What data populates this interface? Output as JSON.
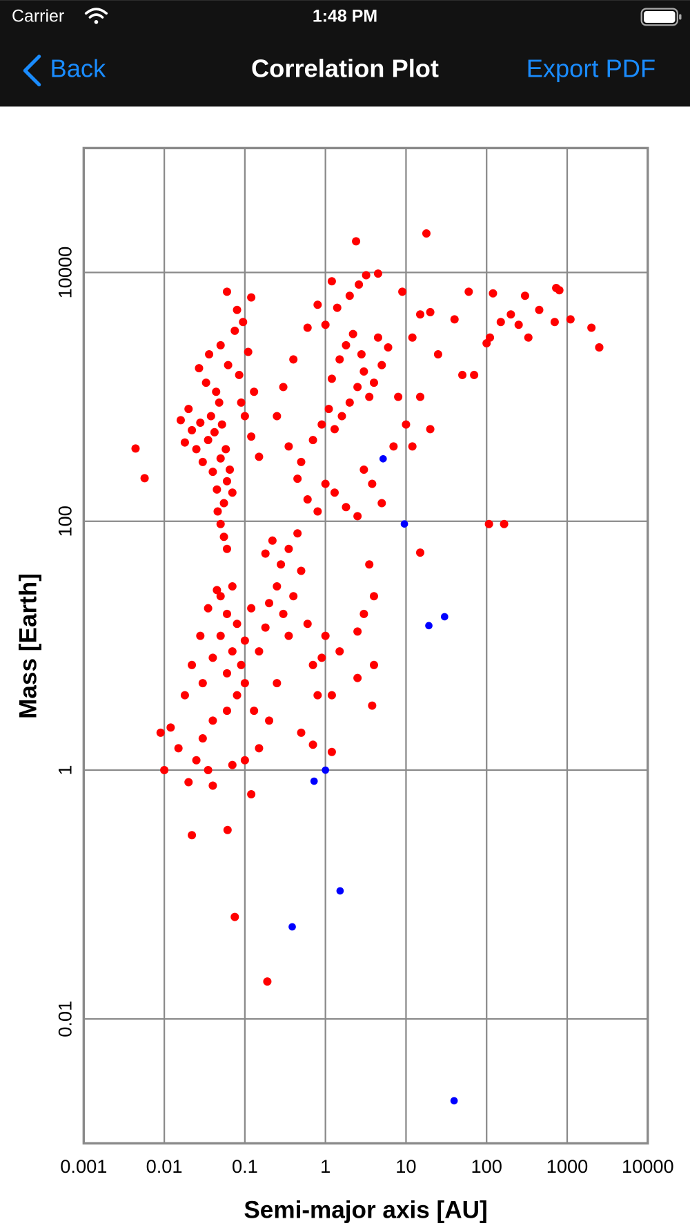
{
  "status_bar": {
    "carrier": "Carrier",
    "time": "1:48 PM"
  },
  "nav": {
    "back": "Back",
    "title": "Correlation Plot",
    "action": "Export PDF"
  },
  "chart_data": {
    "type": "scatter",
    "x_label": "Semi-major axis [AU]",
    "y_label": "Mass [Earth]",
    "xscale": "log",
    "yscale": "log",
    "grid": true,
    "xlim": [
      0.001,
      10000
    ],
    "ylim": [
      0.001,
      100000
    ],
    "xticks": [
      0.001,
      0.01,
      0.1,
      1,
      10,
      100,
      1000,
      10000
    ],
    "yticks": [
      0.01,
      1,
      100,
      10000
    ],
    "series": [
      {
        "color": "#ff0000",
        "x": [
          0.03,
          0.035,
          0.04,
          0.045,
          0.05,
          0.055,
          0.06,
          0.042,
          0.038,
          0.048,
          0.052,
          0.058,
          0.065,
          0.07,
          0.046,
          0.05,
          0.055,
          0.06,
          0.044,
          0.033,
          0.028,
          0.025,
          0.022,
          0.02,
          0.018,
          0.016,
          0.027,
          0.036,
          0.05,
          0.062,
          0.075,
          0.085,
          0.09,
          0.1,
          0.12,
          0.15,
          0.13,
          0.11,
          0.095,
          0.08,
          0.06,
          0.12,
          0.5,
          0.7,
          0.9,
          1.1,
          1.3,
          1.6,
          2,
          2.5,
          3,
          1.2,
          1.5,
          1.8,
          2.2,
          2.8,
          3.5,
          4,
          5,
          4.5,
          6,
          1,
          1.4,
          2,
          2.6,
          3.2,
          4.5,
          1.2,
          0.8,
          0.6,
          0.4,
          0.3,
          0.25,
          0.35,
          0.45,
          0.6,
          0.8,
          1,
          1.3,
          1.8,
          2.5,
          3,
          3.8,
          5,
          7,
          8,
          10,
          12,
          15,
          20,
          25,
          20,
          12,
          9,
          15,
          40,
          50,
          60,
          70,
          110,
          120,
          150,
          200,
          250,
          300,
          330,
          450,
          700,
          800,
          1100,
          2000,
          2500,
          100,
          0.03,
          0.04,
          0.05,
          0.06,
          0.07,
          0.08,
          0.09,
          0.1,
          0.12,
          0.06,
          0.05,
          0.07,
          0.08,
          0.06,
          0.04,
          0.03,
          0.025,
          0.02,
          0.015,
          0.012,
          0.01,
          0.009,
          0.018,
          0.022,
          0.028,
          0.035,
          0.045,
          0.1,
          0.13,
          0.15,
          0.18,
          0.2,
          0.25,
          0.3,
          0.35,
          0.4,
          0.5,
          0.6,
          0.7,
          0.8,
          0.9,
          0.25,
          0.2,
          0.15,
          0.1,
          0.07,
          0.04,
          0.035,
          0.28,
          0.35,
          0.45,
          0.18,
          0.22,
          1,
          1.2,
          1.5,
          2.5,
          3,
          4,
          3.5,
          4,
          0.7,
          0.5,
          1.2,
          0.0044,
          0.0057,
          2.4,
          17.9,
          0.022,
          0.061,
          0.075,
          0.19,
          0.12,
          165,
          15,
          3.8,
          2.5,
          2500,
          731,
          107
        ],
        "values": [
          300,
          450,
          250,
          180,
          320,
          140,
          210,
          520,
          700,
          900,
          600,
          380,
          260,
          170,
          120,
          95,
          75,
          60,
          1100,
          1300,
          620,
          380,
          540,
          800,
          430,
          650,
          1700,
          2200,
          2600,
          1800,
          3400,
          1500,
          900,
          700,
          480,
          330,
          1100,
          2300,
          4000,
          5000,
          7000,
          6300,
          300,
          450,
          600,
          800,
          550,
          700,
          900,
          1200,
          1600,
          1400,
          2000,
          2600,
          3200,
          2200,
          1000,
          1300,
          1800,
          3000,
          2500,
          3800,
          5200,
          6500,
          8000,
          9500,
          9800,
          8500,
          5500,
          3600,
          2000,
          1200,
          700,
          400,
          220,
          150,
          120,
          200,
          170,
          130,
          110,
          260,
          200,
          140,
          400,
          1000,
          600,
          400,
          1000,
          550,
          2200,
          4800,
          3000,
          7000,
          4600,
          4200,
          1500,
          7000,
          1500,
          3000,
          6800,
          4000,
          4600,
          3800,
          6500,
          3000,
          5000,
          4000,
          7200,
          4200,
          3600,
          2500,
          2700,
          5,
          8,
          12,
          6,
          9,
          15,
          7,
          11,
          20,
          18,
          25,
          30,
          4,
          3,
          2.5,
          1.8,
          1.2,
          0.8,
          1.5,
          2.2,
          1,
          2,
          4,
          7,
          12,
          20,
          28,
          5,
          3,
          9,
          14,
          22,
          30,
          18,
          12,
          25,
          40,
          15,
          7,
          4,
          8,
          5,
          2.5,
          1.5,
          1.2,
          1.1,
          0.75,
          1,
          45,
          60,
          80,
          55,
          70,
          12,
          4,
          9,
          13,
          18,
          25,
          45,
          7,
          1.6,
          2,
          1.4,
          385,
          222,
          17800,
          20600,
          0.3,
          0.33,
          0.066,
          0.02,
          0.64,
          95,
          56,
          3.3,
          5.5,
          2500,
          7500,
          95
        ]
      },
      {
        "color": "#0000ff",
        "x": [
          0.387,
          0.723,
          1,
          1.52,
          5.2,
          9.54,
          19.2,
          30.1,
          39.5
        ],
        "values": [
          0.055,
          0.815,
          1,
          0.107,
          318,
          95.2,
          14.5,
          17.1,
          0.0022
        ]
      }
    ]
  }
}
